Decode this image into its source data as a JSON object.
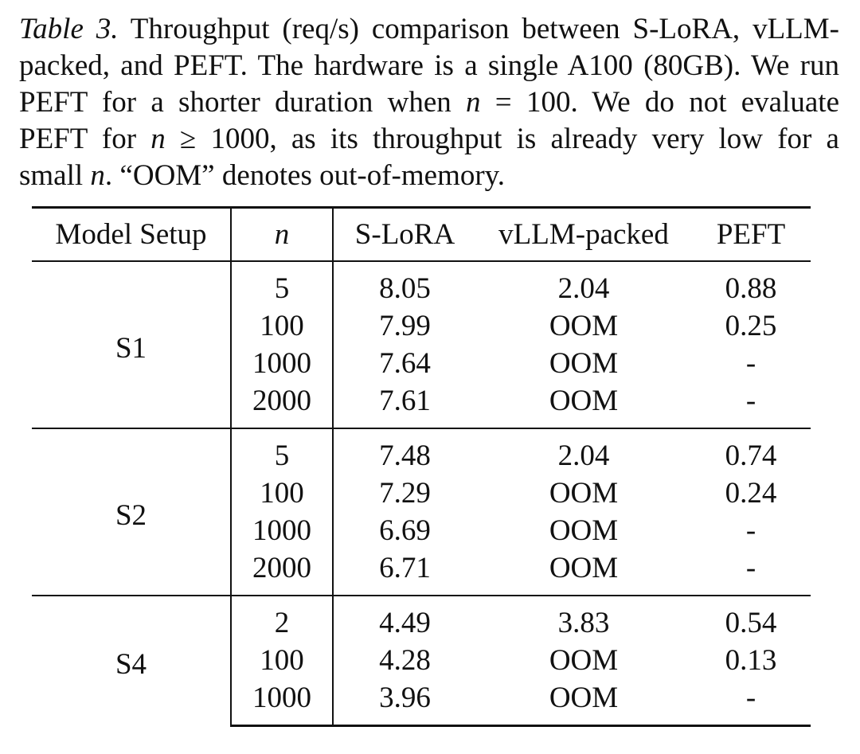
{
  "caption": {
    "label": "Table 3.",
    "lines": [
      " Throughput (req/s) comparison between S-LoRA, vLLM-",
      "packed, and PEFT. The hardware is a single A100 (80GB). We run",
      "PEFT for a shorter duration when ",
      "PEFT for ",
      "small "
    ],
    "n": "n",
    "eq": " = ",
    "val100": "100",
    "line3_rest": ". We do not evaluate",
    "geq": " ≥ ",
    "val1000": "1000",
    "line4_rest": ", as its throughput is already very low for a",
    "line5_rest": ". “OOM” denotes out-of-memory."
  },
  "table": {
    "headers": {
      "model_setup": "Model Setup",
      "n": "n",
      "slora": "S-LoRA",
      "vllm": "vLLM-packed",
      "peft": "PEFT"
    },
    "groups": [
      {
        "setup": "S1",
        "rows": [
          {
            "n": "5",
            "slora": "8.05",
            "vllm": "2.04",
            "peft": "0.88"
          },
          {
            "n": "100",
            "slora": "7.99",
            "vllm": "OOM",
            "peft": "0.25"
          },
          {
            "n": "1000",
            "slora": "7.64",
            "vllm": "OOM",
            "peft": "-"
          },
          {
            "n": "2000",
            "slora": "7.61",
            "vllm": "OOM",
            "peft": "-"
          }
        ]
      },
      {
        "setup": "S2",
        "rows": [
          {
            "n": "5",
            "slora": "7.48",
            "vllm": "2.04",
            "peft": "0.74"
          },
          {
            "n": "100",
            "slora": "7.29",
            "vllm": "OOM",
            "peft": "0.24"
          },
          {
            "n": "1000",
            "slora": "6.69",
            "vllm": "OOM",
            "peft": "-"
          },
          {
            "n": "2000",
            "slora": "6.71",
            "vllm": "OOM",
            "peft": "-"
          }
        ]
      },
      {
        "setup": "S4",
        "rows": [
          {
            "n": "2",
            "slora": "4.49",
            "vllm": "3.83",
            "peft": "0.54"
          },
          {
            "n": "100",
            "slora": "4.28",
            "vllm": "OOM",
            "peft": "0.13"
          },
          {
            "n": "1000",
            "slora": "3.96",
            "vllm": "OOM",
            "peft": "-"
          }
        ]
      }
    ]
  }
}
